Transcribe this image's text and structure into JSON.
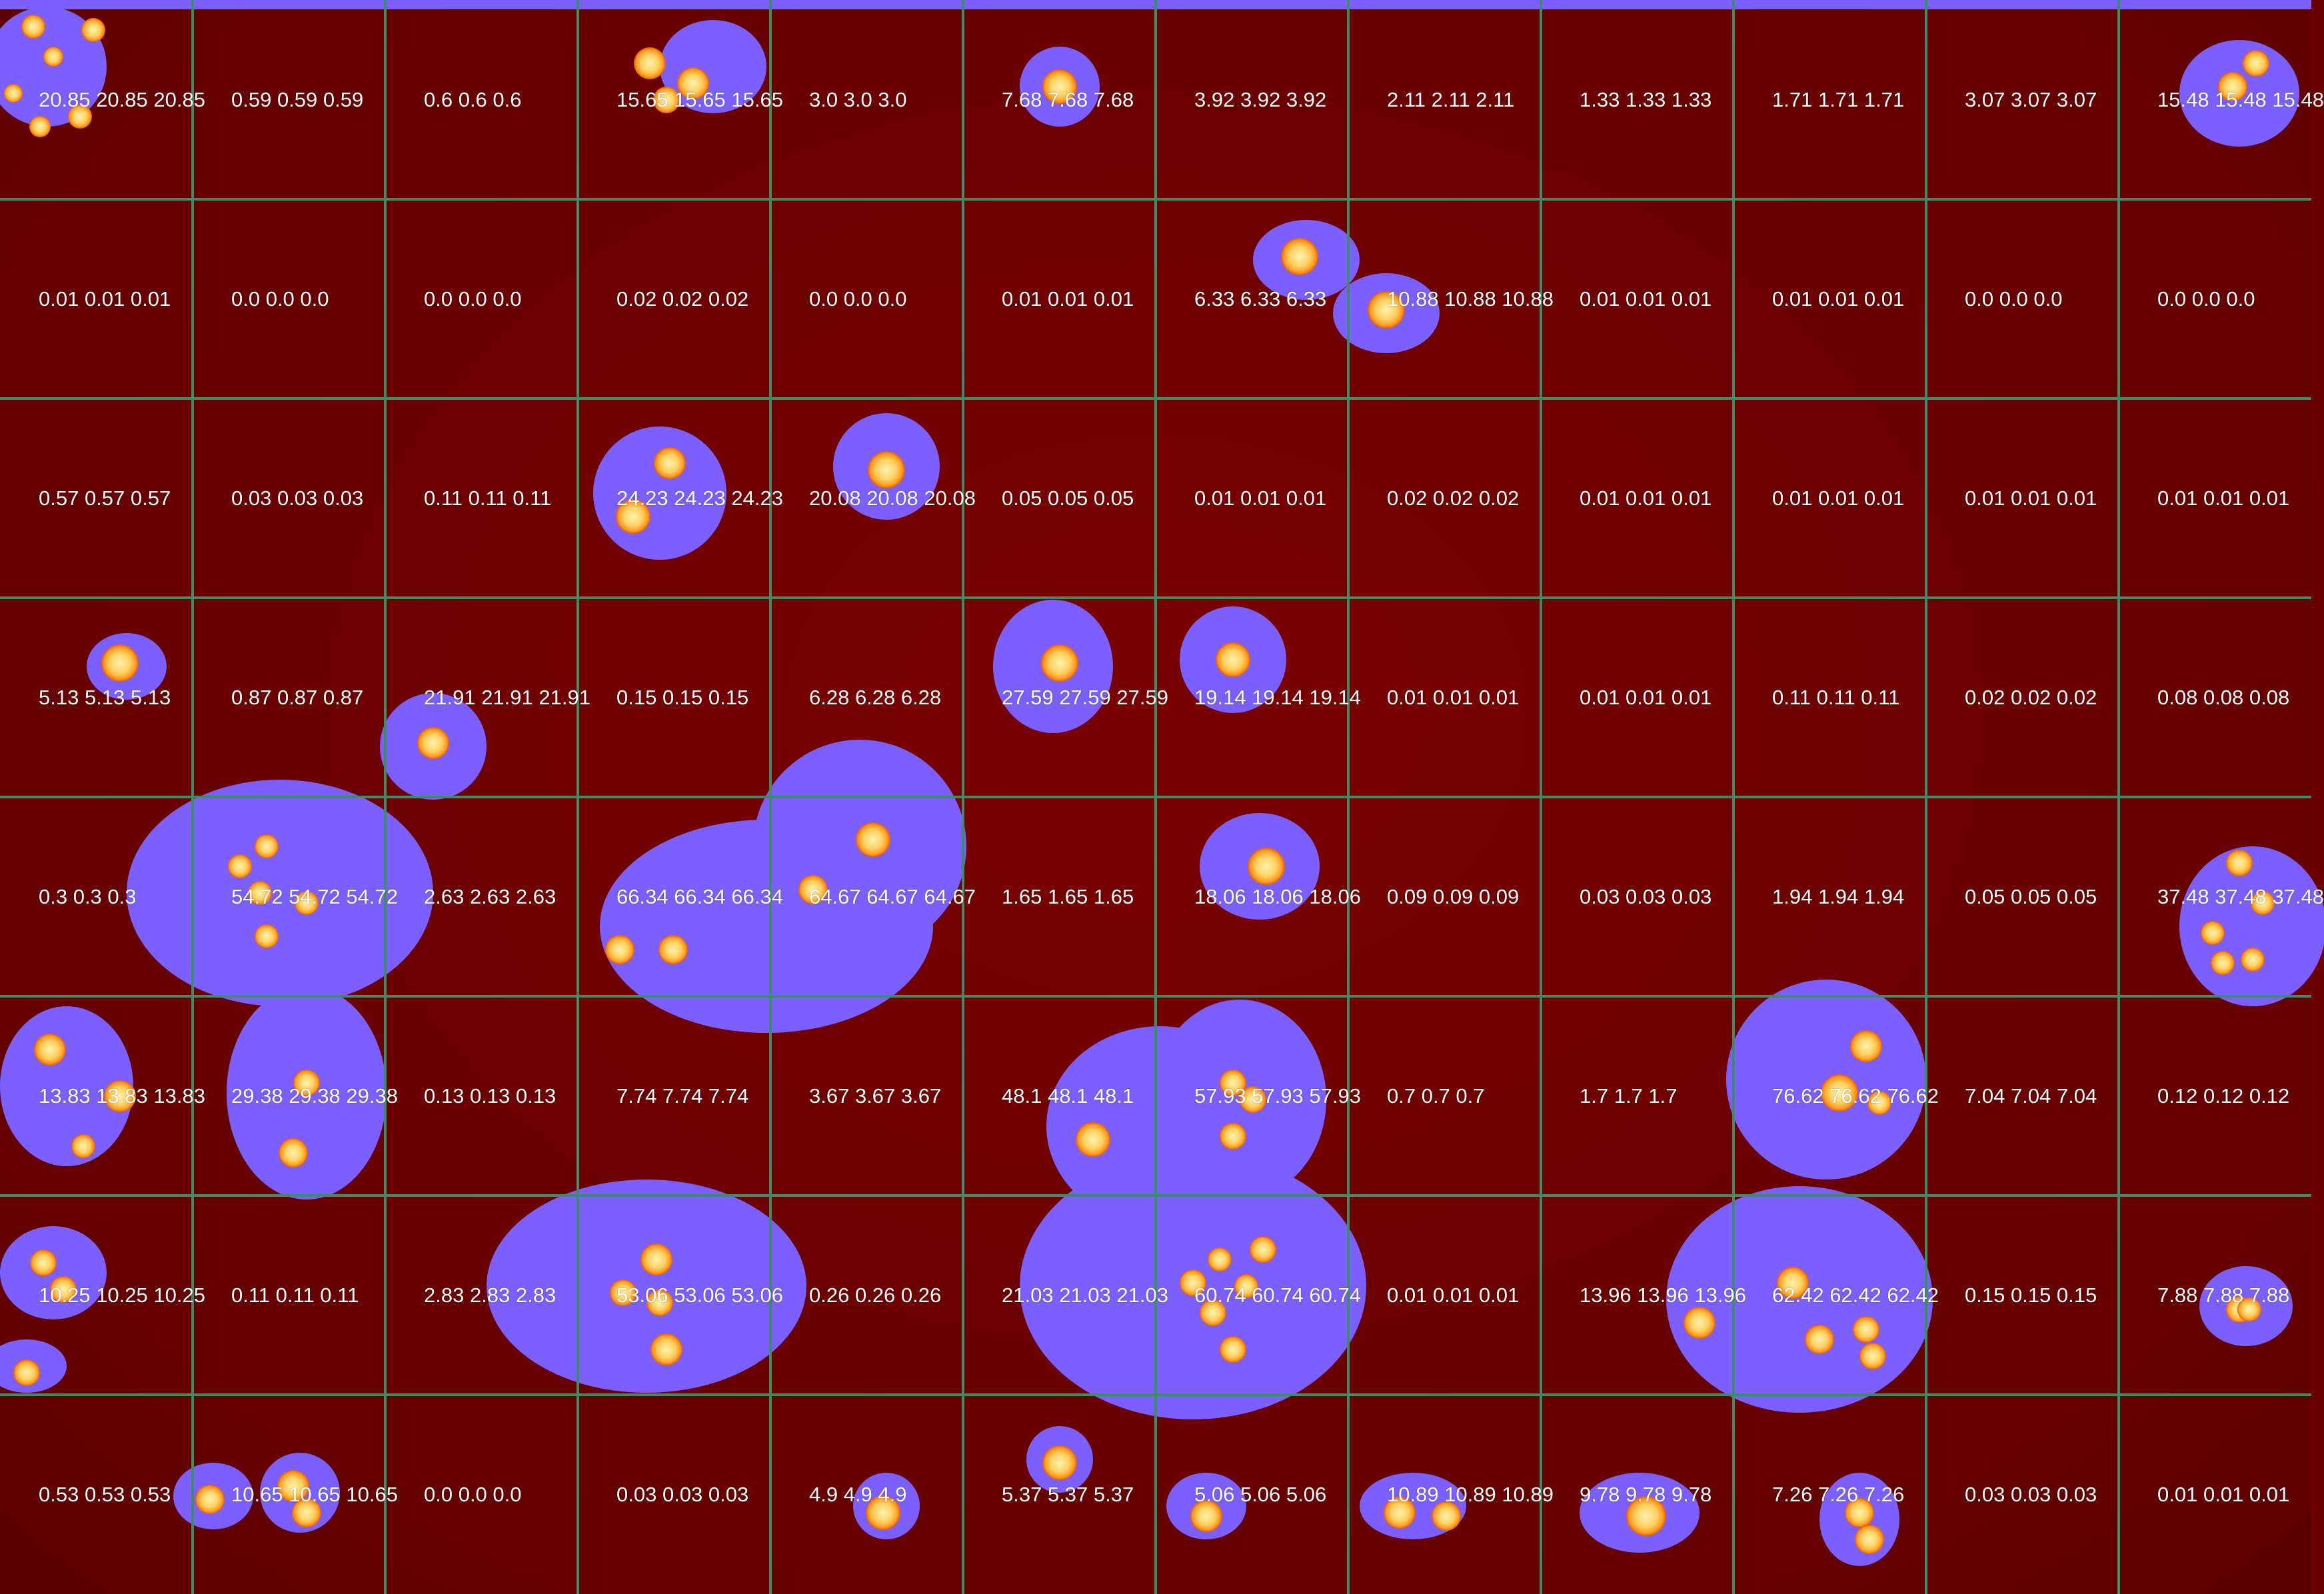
{
  "colors": {
    "background": "#6a0000",
    "halo": "#7b60ff",
    "colony_core": "#ffe680",
    "colony_rim": "#ff7a00",
    "grid": "#3c8c64",
    "label": "#ffffff"
  },
  "grid": {
    "rows": 8,
    "cols": 12,
    "labels": [
      [
        "20.85 20.85 20.85",
        "0.59 0.59 0.59",
        "0.6 0.6 0.6",
        "15.65 15.65 15.65",
        "3.0 3.0 3.0",
        "7.68 7.68 7.68",
        "3.92 3.92 3.92",
        "2.11 2.11 2.11",
        "1.33 1.33 1.33",
        "1.71 1.71 1.71",
        "3.07 3.07 3.07",
        "15.48 15.48 15.48"
      ],
      [
        "0.01 0.01 0.01",
        "0.0 0.0 0.0",
        "0.0 0.0 0.0",
        "0.02 0.02 0.02",
        "0.0 0.0 0.0",
        "0.01 0.01 0.01",
        "6.33 6.33 6.33",
        "10.88 10.88 10.88",
        "0.01 0.01 0.01",
        "0.01 0.01 0.01",
        "0.0 0.0 0.0",
        "0.0 0.0 0.0"
      ],
      [
        "0.57 0.57 0.57",
        "0.03 0.03 0.03",
        "0.11 0.11 0.11",
        "24.23 24.23 24.23",
        "20.08 20.08 20.08",
        "0.05 0.05 0.05",
        "0.01 0.01 0.01",
        "0.02 0.02 0.02",
        "0.01 0.01 0.01",
        "0.01 0.01 0.01",
        "0.01 0.01 0.01",
        "0.01 0.01 0.01"
      ],
      [
        "5.13 5.13 5.13",
        "0.87 0.87 0.87",
        "21.91 21.91 21.91",
        "0.15 0.15 0.15",
        "6.28 6.28 6.28",
        "27.59 27.59 27.59",
        "19.14 19.14 19.14",
        "0.01 0.01 0.01",
        "0.01 0.01 0.01",
        "0.11 0.11 0.11",
        "0.02 0.02 0.02",
        "0.08 0.08 0.08"
      ],
      [
        "0.3 0.3 0.3",
        "54.72 54.72 54.72",
        "2.63 2.63 2.63",
        "66.34 66.34 66.34",
        "64.67 64.67 64.67",
        "1.65 1.65 1.65",
        "18.06 18.06 18.06",
        "0.09 0.09 0.09",
        "0.03 0.03 0.03",
        "1.94 1.94 1.94",
        "0.05 0.05 0.05",
        "37.48 37.48 37.48"
      ],
      [
        "13.83 13.83 13.83",
        "29.38 29.38 29.38",
        "0.13 0.13 0.13",
        "7.74 7.74 7.74",
        "3.67 3.67 3.67",
        "48.1 48.1 48.1",
        "57.93 57.93 57.93",
        "0.7 0.7 0.7",
        "1.7 1.7 1.7",
        "76.62 76.62 76.62",
        "7.04 7.04 7.04",
        "0.12 0.12 0.12"
      ],
      [
        "10.25 10.25 10.25",
        "0.11 0.11 0.11",
        "2.83 2.83 2.83",
        "53.06 53.06 53.06",
        "0.26 0.26 0.26",
        "21.03 21.03 21.03",
        "60.74 60.74 60.74",
        "0.01 0.01 0.01",
        "13.96 13.96 13.96",
        "62.42 62.42 62.42",
        "0.15 0.15 0.15",
        "7.88 7.88 7.88"
      ],
      [
        "0.53 0.53 0.53",
        "10.65 10.65 10.65",
        "0.0 0.0 0.0",
        "0.03 0.03 0.03",
        "4.9 4.9 4.9",
        "5.37 5.37 5.37",
        "5.06 5.06 5.06",
        "10.89 10.89 10.89",
        "9.78 9.78 9.78",
        "7.26 7.26 7.26",
        "0.03 0.03 0.03",
        "0.01 0.01 0.01"
      ]
    ]
  }
}
